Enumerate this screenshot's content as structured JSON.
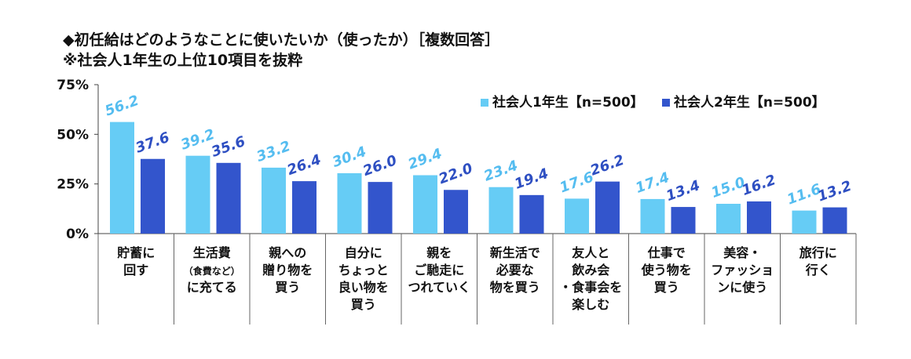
{
  "title": "◆初任給はどのようなことに使いたいか（使ったか）［複数回答］",
  "subtitle": "※社会人1年生の上位10項目を抜粋",
  "chart_data": {
    "type": "bar",
    "categories": [
      [
        "貯蓄に",
        "回す"
      ],
      [
        "生活費",
        "（食費など）",
        "に充てる"
      ],
      [
        "親への",
        "贈り物を",
        "買う"
      ],
      [
        "自分に",
        "ちょっと",
        "良い物を",
        "買う"
      ],
      [
        "親を",
        "ご馳走に",
        "つれていく"
      ],
      [
        "新生活で",
        "必要な",
        "物を買う"
      ],
      [
        "友人と",
        "飲み会",
        "・食事会を",
        "楽しむ"
      ],
      [
        "仕事で",
        "使う物を",
        "買う"
      ],
      [
        "美容・",
        "ファッショ",
        "ンに使う"
      ],
      [
        "旅行に",
        "行く"
      ]
    ],
    "series": [
      {
        "name": "社会人1年生【n=500】",
        "color": "#66ccf5",
        "label_color": "#55bdf0",
        "values": [
          56.2,
          39.2,
          33.2,
          30.4,
          29.4,
          23.4,
          17.6,
          17.4,
          15.0,
          11.6
        ]
      },
      {
        "name": "社会人2年生【n=500】",
        "color": "#3355cc",
        "label_color": "#2e4fc2",
        "values": [
          37.6,
          35.6,
          26.4,
          26.0,
          22.0,
          19.4,
          26.2,
          13.4,
          16.2,
          13.2
        ]
      }
    ],
    "value_labels": [
      [
        "56.2",
        "39.2",
        "33.2",
        "30.4",
        "29.4",
        "23.4",
        "17.6",
        "17.4",
        "15.0",
        "11.6"
      ],
      [
        "37.6",
        "35.6",
        "26.4",
        "26.0",
        "22.0",
        "19.4",
        "26.2",
        "13.4",
        "16.2",
        "13.2"
      ]
    ],
    "yticks": [
      {
        "value": 0,
        "label": "0%"
      },
      {
        "value": 25,
        "label": "25%"
      },
      {
        "value": 50,
        "label": "50%"
      },
      {
        "value": 75,
        "label": "75%"
      }
    ],
    "ylim": [
      0,
      75
    ],
    "grid": false,
    "legend_position": "top-right"
  }
}
